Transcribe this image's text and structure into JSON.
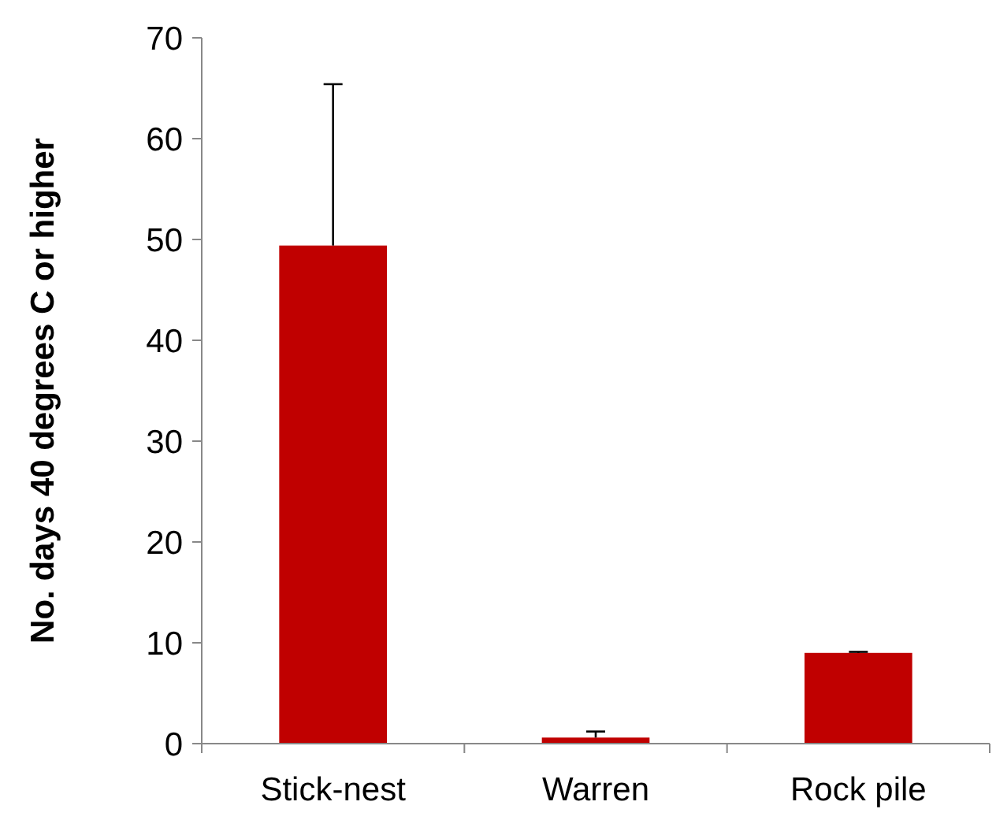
{
  "chart_data": {
    "type": "bar",
    "ylabel": "No. days 40 degrees C or higher",
    "categories": [
      "Stick-nest",
      "Warren",
      "Rock pile"
    ],
    "values": [
      49.4,
      0.6,
      9.0
    ],
    "errors": [
      16,
      0.6,
      0.1
    ],
    "color": "#c00000",
    "ylim": [
      0,
      70
    ],
    "yticks": [
      0,
      10,
      20,
      30,
      40,
      50,
      60,
      70
    ],
    "grid": false
  }
}
